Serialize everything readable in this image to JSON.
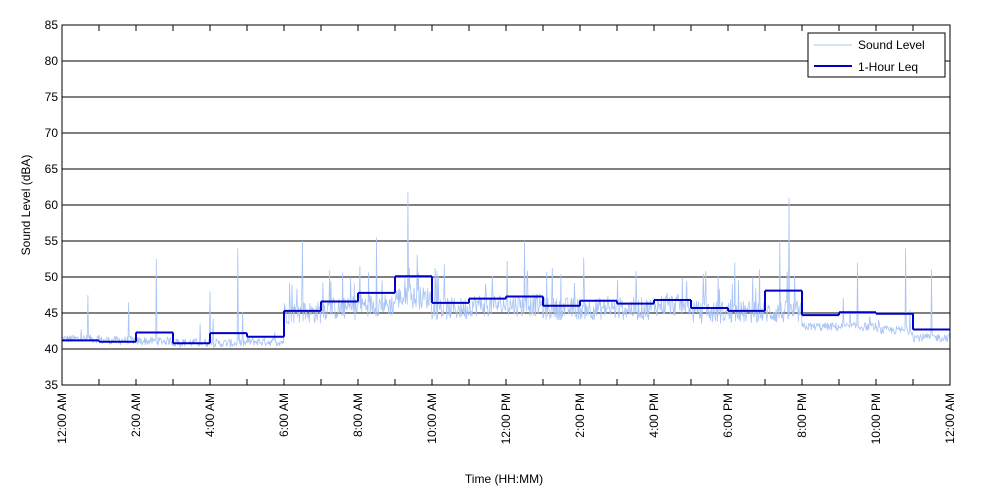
{
  "chart_data": {
    "type": "line",
    "xlabel": "Time (HH:MM)",
    "ylabel": "Sound Level (dBA)",
    "ylim": [
      35,
      85
    ],
    "xlim_hours": [
      0,
      24
    ],
    "y_ticks": [
      "35",
      "40",
      "45",
      "50",
      "55",
      "60",
      "65",
      "70",
      "75",
      "80",
      "85"
    ],
    "x_ticks": [
      {
        "hour": 0,
        "label": "12:00 AM"
      },
      {
        "hour": 2,
        "label": "2:00 AM"
      },
      {
        "hour": 4,
        "label": "4:00 AM"
      },
      {
        "hour": 6,
        "label": "6:00 AM"
      },
      {
        "hour": 8,
        "label": "8:00 AM"
      },
      {
        "hour": 10,
        "label": "10:00 AM"
      },
      {
        "hour": 12,
        "label": "12:00 PM"
      },
      {
        "hour": 14,
        "label": "2:00 PM"
      },
      {
        "hour": 16,
        "label": "4:00 PM"
      },
      {
        "hour": 18,
        "label": "6:00 PM"
      },
      {
        "hour": 20,
        "label": "8:00 PM"
      },
      {
        "hour": 22,
        "label": "10:00 PM"
      },
      {
        "hour": 24,
        "label": "12:00 AM"
      }
    ],
    "grid": "horizontal",
    "legend_position": "top-right",
    "series": [
      {
        "name": "Sound Level",
        "color": "#a9c4f5",
        "style": "thin line",
        "hourly_baseline": [
          40.8,
          40.6,
          40.5,
          40.3,
          40.2,
          40.4,
          43.5,
          44.0,
          44.5,
          45.5,
          44.0,
          44.5,
          44.5,
          44.0,
          44.0,
          44.0,
          44.5,
          43.5,
          43.5,
          43.5,
          42.5,
          42.5,
          42.0,
          41.0
        ],
        "peaks": [
          {
            "hour": 0.7,
            "value": 47.5
          },
          {
            "hour": 1.8,
            "value": 46.5
          },
          {
            "hour": 2.55,
            "value": 52.5
          },
          {
            "hour": 4.0,
            "value": 48.0
          },
          {
            "hour": 4.75,
            "value": 54.0
          },
          {
            "hour": 6.5,
            "value": 55.0
          },
          {
            "hour": 8.5,
            "value": 55.5
          },
          {
            "hour": 9.35,
            "value": 61.8
          },
          {
            "hour": 12.5,
            "value": 55.0
          },
          {
            "hour": 19.4,
            "value": 55.0
          },
          {
            "hour": 19.65,
            "value": 61.0
          },
          {
            "hour": 21.5,
            "value": 52.0
          },
          {
            "hour": 22.8,
            "value": 54.0
          },
          {
            "hour": 23.5,
            "value": 51.0
          }
        ]
      },
      {
        "name": "1-Hour Leq",
        "color": "#0000c8",
        "style": "step",
        "x": [
          0,
          1,
          2,
          3,
          4,
          5,
          6,
          7,
          8,
          9,
          10,
          11,
          12,
          13,
          14,
          15,
          16,
          17,
          18,
          19,
          20,
          21,
          22,
          23
        ],
        "values": [
          41.2,
          41.0,
          42.3,
          40.8,
          42.2,
          41.7,
          45.3,
          46.6,
          47.8,
          50.1,
          46.4,
          47.0,
          47.3,
          46.0,
          46.7,
          46.3,
          46.8,
          45.7,
          45.3,
          48.1,
          44.7,
          45.1,
          44.9,
          42.7
        ]
      }
    ]
  }
}
